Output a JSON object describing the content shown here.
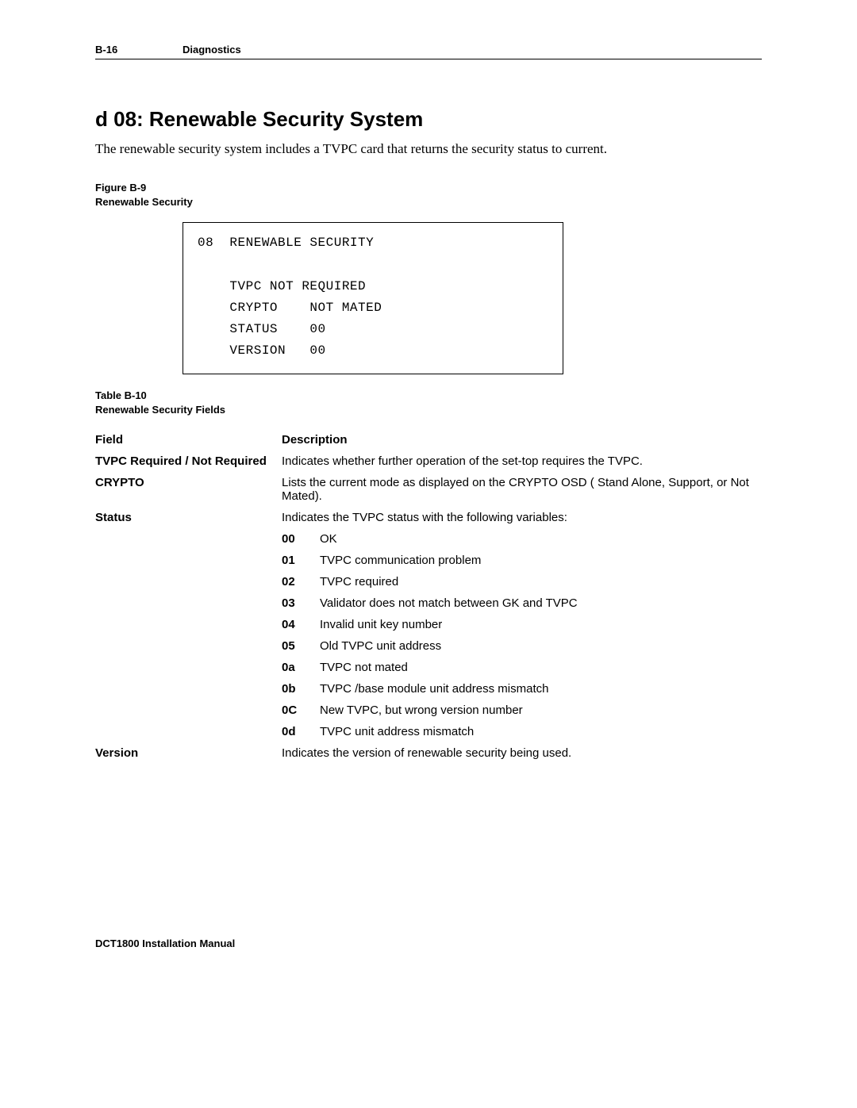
{
  "header": {
    "page": "B-16",
    "section": "Diagnostics"
  },
  "section": {
    "title": "d 08: Renewable Security System",
    "intro": "The renewable security system includes a TVPC card that returns the security status to current."
  },
  "figure": {
    "label_line1": "Figure B-9",
    "label_line2": "Renewable Security",
    "osd": "08  RENEWABLE SECURITY\n\n    TVPC NOT REQUIRED\n    CRYPTO    NOT MATED\n    STATUS    00\n    VERSION   00"
  },
  "table": {
    "label_line1": "Table B-10",
    "label_line2": "Renewable Security Fields",
    "header_field": "Field",
    "header_desc": "Description",
    "rows": {
      "tvpc": {
        "field": "TVPC Required / Not Required",
        "desc": "Indicates whether further operation of the set-top requires the TVPC."
      },
      "crypto": {
        "field": "CRYPTO",
        "desc": "Lists the current mode as displayed on the CRYPTO OSD ( Stand Alone, Support, or Not Mated)."
      },
      "status": {
        "field": "Status",
        "desc": "Indicates the TVPC status with the following variables:",
        "codes": [
          {
            "code": "00",
            "text": "OK"
          },
          {
            "code": "01",
            "text": "TVPC communication problem"
          },
          {
            "code": "02",
            "text": "TVPC required"
          },
          {
            "code": "03",
            "text": "Validator does not match between GK and TVPC"
          },
          {
            "code": "04",
            "text": "Invalid unit key number"
          },
          {
            "code": "05",
            "text": "Old TVPC unit address"
          },
          {
            "code": "0a",
            "text": "TVPC not mated"
          },
          {
            "code": "0b",
            "text": "TVPC /base module unit address mismatch"
          },
          {
            "code": "0C",
            "text": "New TVPC, but wrong version number"
          },
          {
            "code": "0d",
            "text": "TVPC unit address mismatch"
          }
        ]
      },
      "version": {
        "field": "Version",
        "desc": "Indicates the version of renewable security being used."
      }
    }
  },
  "footer": "DCT1800 Installation Manual"
}
